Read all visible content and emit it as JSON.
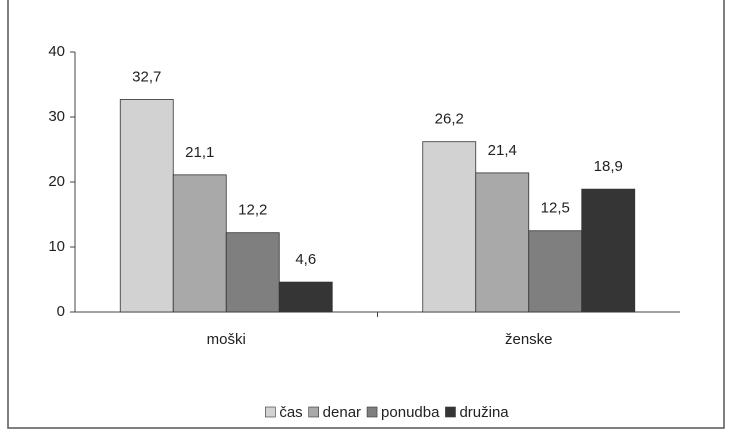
{
  "chart_data": {
    "type": "bar",
    "categories": [
      "moški",
      "ženske"
    ],
    "series": [
      {
        "name": "čas",
        "color": "#d2d2d2",
        "values": [
          32.7,
          26.2
        ],
        "value_labels": [
          "32,7",
          "26,2"
        ]
      },
      {
        "name": "denar",
        "color": "#a9a9a9",
        "values": [
          21.1,
          21.4
        ],
        "value_labels": [
          "21,1",
          "21,4"
        ]
      },
      {
        "name": "ponudba",
        "color": "#7f7f7f",
        "values": [
          12.2,
          12.5
        ],
        "value_labels": [
          "12,2",
          "12,5"
        ]
      },
      {
        "name": "družina",
        "color": "#353535",
        "values": [
          4.6,
          18.9
        ],
        "value_labels": [
          "4,6",
          "18,9"
        ]
      }
    ],
    "ylim": [
      0,
      40
    ],
    "yticks": [
      0,
      10,
      20,
      30,
      40
    ],
    "legend": "bottom"
  }
}
